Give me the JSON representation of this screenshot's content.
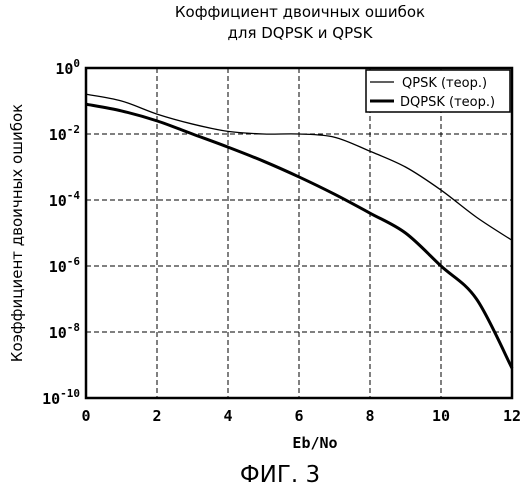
{
  "chart_data": {
    "type": "line",
    "title": [
      "Коффициент двоичных ошибок",
      "для DQPSK и QPSK"
    ],
    "xlabel": "Eb/No",
    "ylabel": "Коэффициент двоичных ошибок",
    "xlim": [
      0,
      12
    ],
    "ylim": [
      1e-10,
      1
    ],
    "yscale": "log",
    "xticks": [
      0,
      2,
      4,
      6,
      8,
      10,
      12
    ],
    "xtick_labels": [
      "0",
      "2",
      "4",
      "6",
      "8",
      "10",
      "12"
    ],
    "ytick_base": "10",
    "ytick_exponents": [
      "0",
      "-2",
      "-4",
      "-6",
      "-8",
      "-10"
    ],
    "grid": true,
    "legend_position": "top-right",
    "series": [
      {
        "name": "QPSK (теор.)",
        "line": "thin",
        "x": [
          0,
          1,
          2,
          3,
          4,
          5,
          6,
          7,
          8,
          9,
          10,
          11,
          12
        ],
        "y": [
          0.16,
          0.1,
          0.04,
          0.02,
          0.012,
          0.01,
          0.01,
          0.008,
          0.003,
          0.001,
          0.0002,
          3e-05,
          6e-06
        ]
      },
      {
        "name": "DQPSK (теор.)",
        "line": "thick",
        "x": [
          0,
          1,
          2,
          3,
          4,
          5,
          6,
          7,
          8,
          9,
          10,
          11,
          12
        ],
        "y": [
          0.08,
          0.05,
          0.025,
          0.01,
          0.004,
          0.0015,
          0.0005,
          0.00015,
          4e-05,
          1e-05,
          1e-06,
          1e-07,
          8e-10
        ]
      }
    ]
  },
  "figure_caption": "ФИГ. 3"
}
